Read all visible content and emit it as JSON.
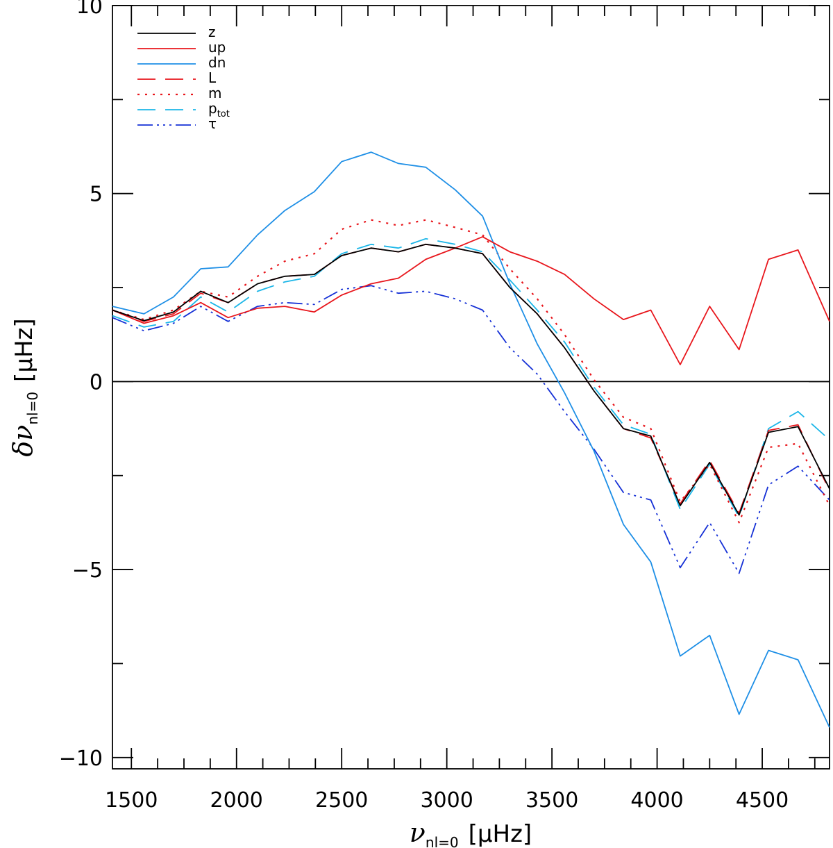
{
  "chart_data": {
    "type": "line",
    "title": "",
    "xlabel": {
      "symbol": "ν",
      "subscript": "nl=0",
      "unit": "[μHz]"
    },
    "ylabel": {
      "symbol": "δν",
      "subscript": "nl=0",
      "unit": "[μHz]"
    },
    "xlim": [
      1410,
      4820
    ],
    "ylim": [
      -10.3,
      10
    ],
    "xticks": [
      1500,
      2000,
      2500,
      3000,
      3500,
      4000,
      4500
    ],
    "xtick_labels": [
      "1500",
      "2000",
      "2500",
      "3000",
      "3500",
      "4000",
      "4500"
    ],
    "yticks": [
      10,
      5,
      0,
      -5,
      -10
    ],
    "ytick_labels": [
      "10",
      "5",
      "0",
      "−5",
      "−10"
    ],
    "legend_position": "top-left",
    "x": [
      1410,
      1560,
      1700,
      1830,
      1960,
      2100,
      2230,
      2370,
      2500,
      2640,
      2770,
      2900,
      3040,
      3170,
      3300,
      3430,
      3560,
      3700,
      3840,
      3970,
      4110,
      4250,
      4390,
      4530,
      4670,
      4820
    ],
    "series": [
      {
        "name": "z",
        "label": "z",
        "color": "#000000",
        "dash": "solid",
        "width": 1.8,
        "values": [
          1.9,
          1.62,
          1.85,
          2.4,
          2.1,
          2.6,
          2.8,
          2.85,
          3.35,
          3.55,
          3.45,
          3.65,
          3.55,
          3.4,
          2.5,
          1.8,
          0.9,
          -0.25,
          -1.25,
          -1.45,
          -3.3,
          -2.15,
          -3.55,
          -1.35,
          -1.2,
          -2.85
        ]
      },
      {
        "name": "up",
        "label": "up",
        "color": "#e8161c",
        "dash": "solid",
        "width": 1.8,
        "values": [
          1.9,
          1.55,
          1.75,
          2.1,
          1.7,
          1.95,
          2.0,
          1.85,
          2.3,
          2.6,
          2.75,
          3.25,
          3.55,
          3.85,
          3.45,
          3.2,
          2.85,
          2.2,
          1.65,
          1.9,
          0.45,
          2.0,
          0.85,
          3.25,
          3.5,
          1.6
        ]
      },
      {
        "name": "dn",
        "label": "dn",
        "color": "#1e8fe6",
        "dash": "solid",
        "width": 1.8,
        "values": [
          2.0,
          1.8,
          2.25,
          3.0,
          3.05,
          3.9,
          4.55,
          5.05,
          5.85,
          6.1,
          5.8,
          5.7,
          5.1,
          4.4,
          2.6,
          1.0,
          -0.3,
          -1.85,
          -3.8,
          -4.8,
          -7.3,
          -6.75,
          -8.85,
          -7.15,
          -7.4,
          -9.2
        ]
      },
      {
        "name": "L",
        "label": "L",
        "color": "#e8161c",
        "dash": "26 14",
        "width": 1.8,
        "values": [
          1.9,
          1.6,
          1.8,
          2.35,
          2.1,
          2.6,
          2.8,
          2.85,
          3.35,
          3.55,
          3.45,
          3.65,
          3.55,
          3.4,
          2.5,
          1.8,
          0.9,
          -0.25,
          -1.25,
          -1.5,
          -3.25,
          -2.1,
          -3.5,
          -1.3,
          -1.15,
          -2.9
        ]
      },
      {
        "name": "m",
        "label": "m",
        "color": "#e8161c",
        "dash": "3 8",
        "width": 2.2,
        "values": [
          1.9,
          1.65,
          1.9,
          2.4,
          2.25,
          2.8,
          3.2,
          3.4,
          4.05,
          4.3,
          4.15,
          4.3,
          4.1,
          3.9,
          3.0,
          2.2,
          1.25,
          0.05,
          -0.95,
          -1.25,
          -3.2,
          -2.2,
          -3.75,
          -1.75,
          -1.65,
          -3.3
        ]
      },
      {
        "name": "p_tot",
        "label": "p",
        "label_sub": "tot",
        "color": "#1bb6e8",
        "dash": "26 14",
        "width": 1.8,
        "values": [
          1.75,
          1.45,
          1.6,
          2.25,
          1.85,
          2.4,
          2.65,
          2.8,
          3.4,
          3.65,
          3.55,
          3.8,
          3.65,
          3.45,
          2.7,
          1.9,
          1.05,
          -0.15,
          -1.15,
          -1.4,
          -3.4,
          -2.2,
          -3.6,
          -1.25,
          -0.8,
          -1.55
        ]
      },
      {
        "name": "tau",
        "label": "τ",
        "color": "#1530d6",
        "dash": "22 6 3 6 3 6 3 6",
        "width": 1.8,
        "values": [
          1.7,
          1.35,
          1.55,
          2.0,
          1.6,
          2.0,
          2.1,
          2.05,
          2.45,
          2.55,
          2.35,
          2.4,
          2.2,
          1.9,
          0.9,
          0.2,
          -0.8,
          -1.8,
          -2.95,
          -3.15,
          -4.95,
          -3.75,
          -5.1,
          -2.75,
          -2.25,
          -3.15
        ]
      }
    ]
  }
}
